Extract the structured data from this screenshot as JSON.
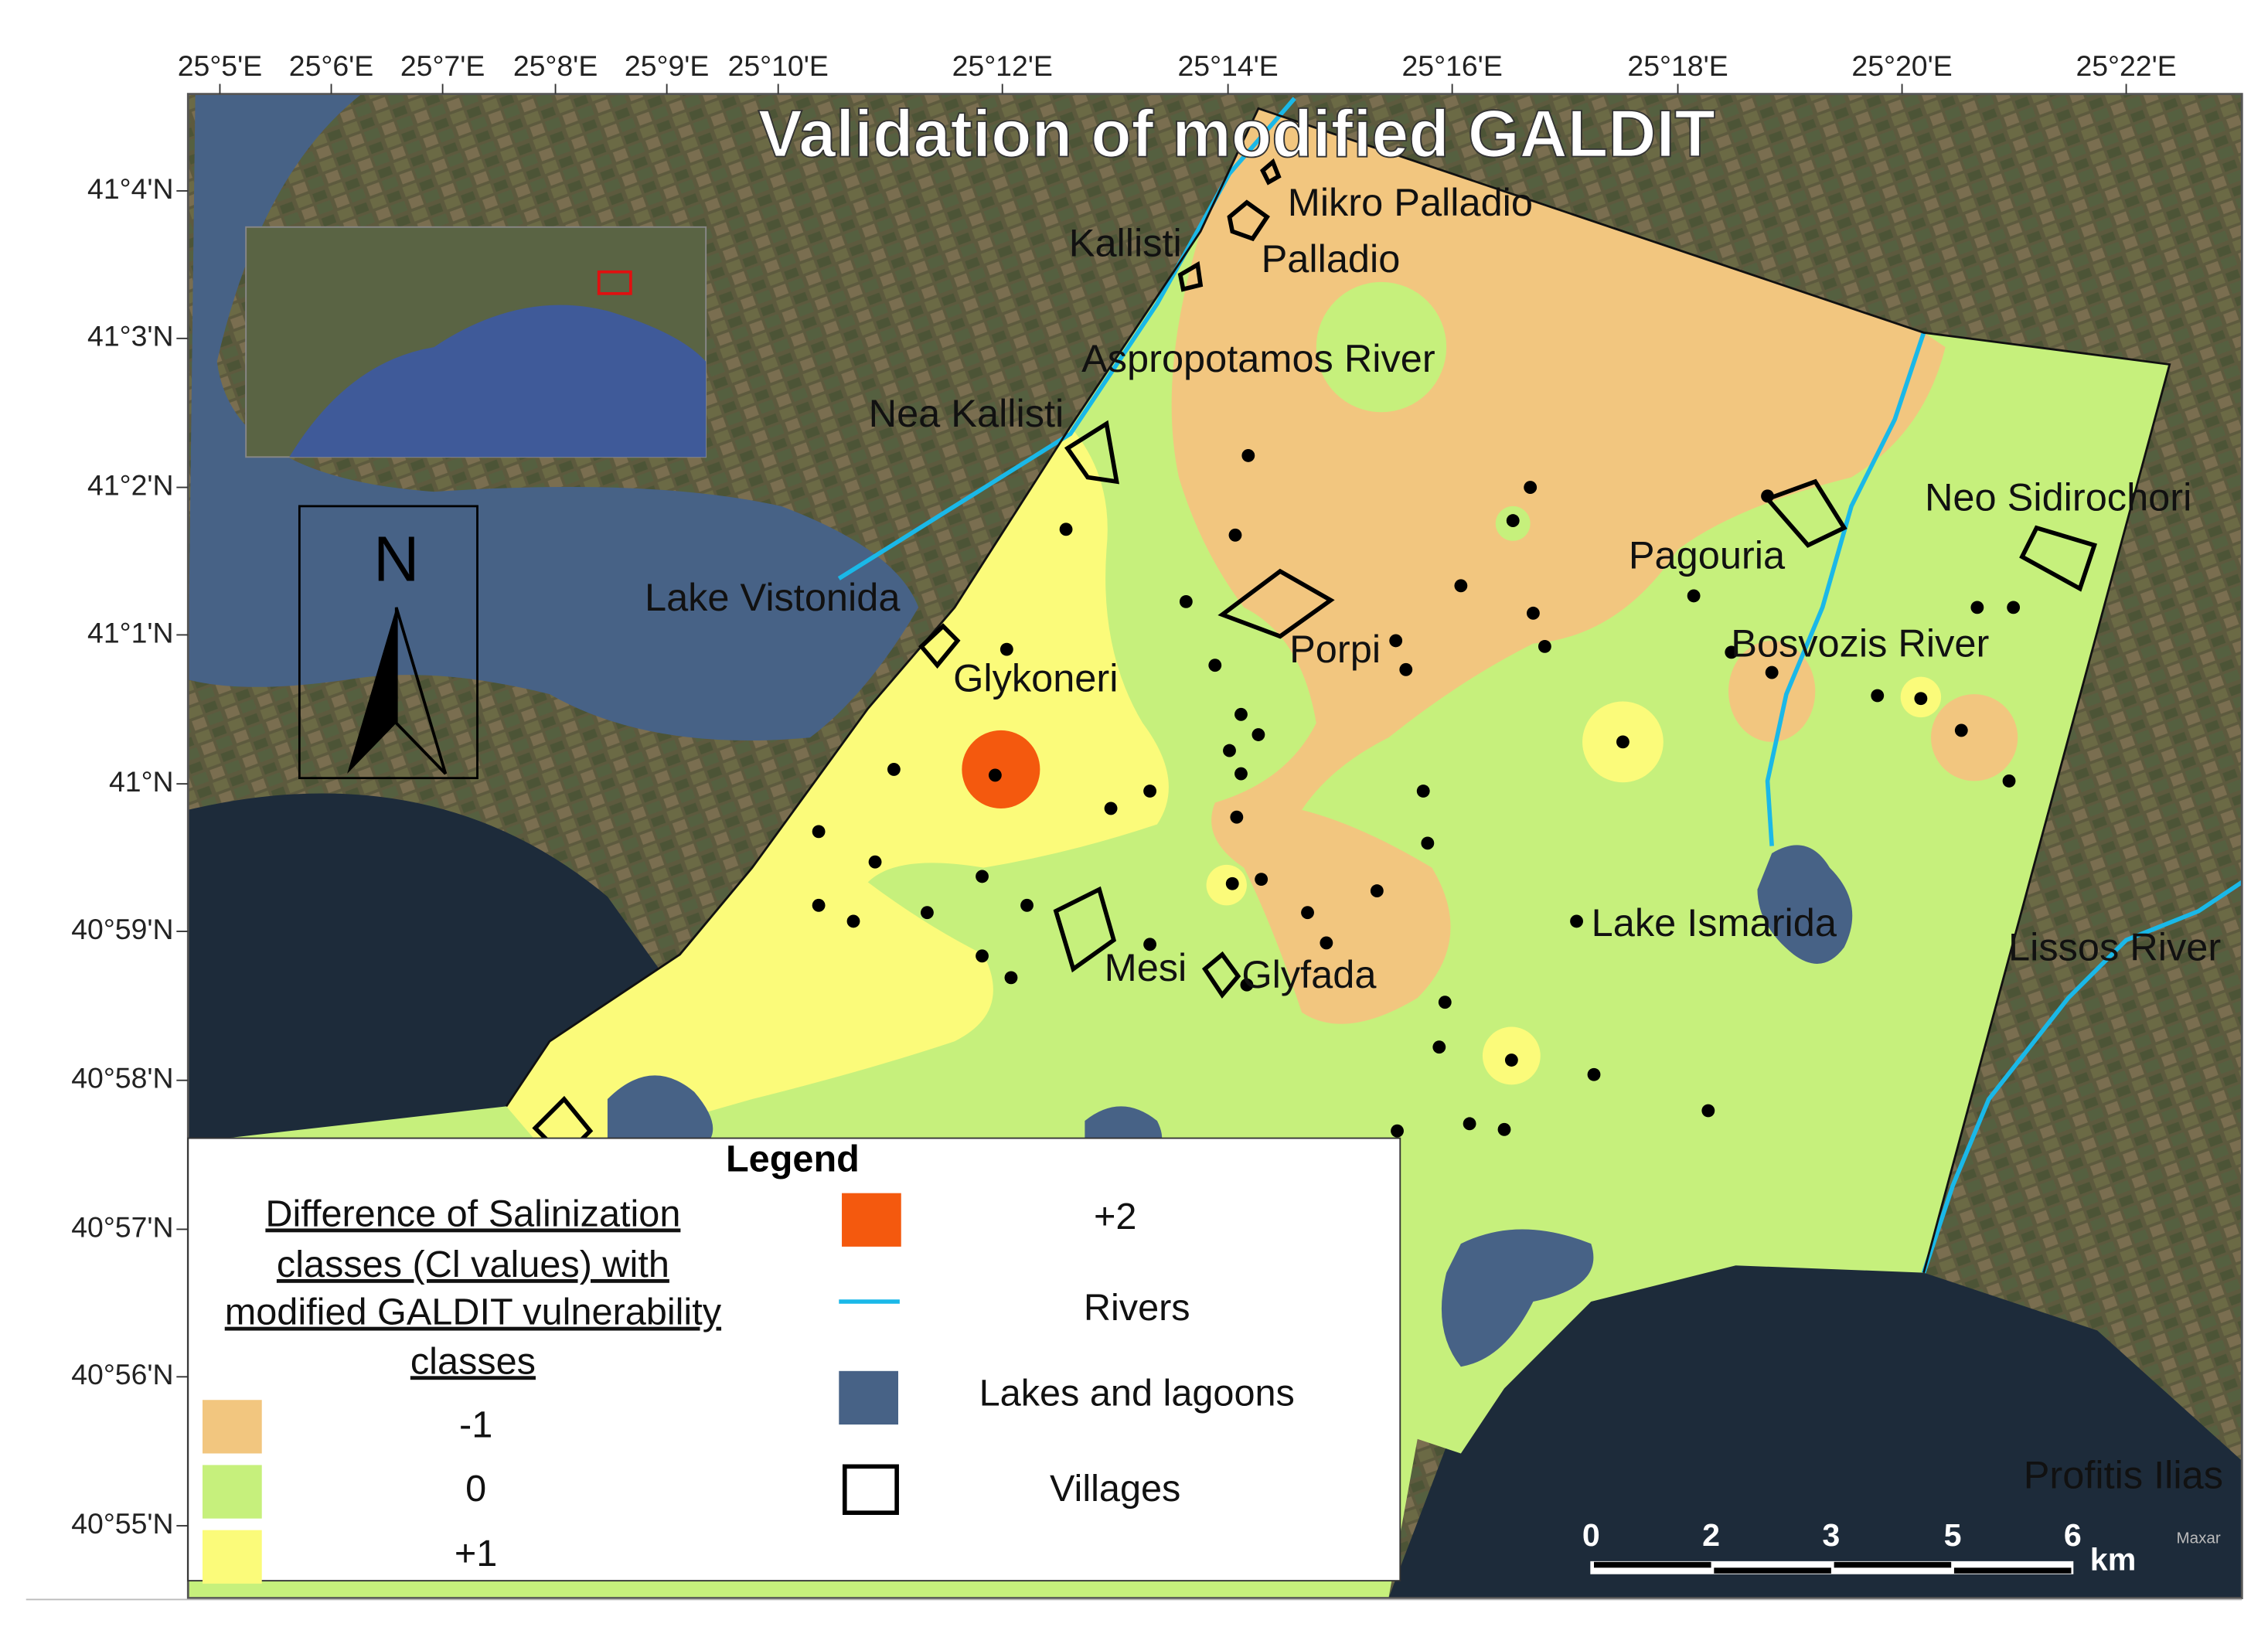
{
  "title": "Validation of modified GALDIT",
  "lon_ticks": [
    "25°5'E",
    "25°6'E",
    "25°7'E",
    "25°8'E",
    "25°9'E",
    "25°10'E",
    "25°12'E",
    "25°14'E",
    "25°16'E",
    "25°18'E",
    "25°20'E",
    "25°22'E"
  ],
  "lat_ticks": [
    "41°4'N",
    "41°3'N",
    "41°2'N",
    "41°1'N",
    "41°N",
    "40°59'N",
    "40°58'N",
    "40°57'N",
    "40°56'N",
    "40°55'N"
  ],
  "places": [
    "Mikro Palladio",
    "Palladio",
    "Kallisti",
    "Aspropotamos River",
    "Nea Kallisti",
    "Lake Vistonida",
    "Glykoneri",
    "Porpi",
    "Pagouria",
    "Neo Sidirochori",
    "Bosvozis River",
    "Lake Ismarida",
    "Lissos River",
    "Mesi",
    "Glyfada",
    "Profitis Ilias"
  ],
  "north": "N",
  "legend": {
    "title": "Legend",
    "heading": [
      "Difference of Salinization",
      "classes (Cl values) with",
      "modified GALDIT vulnerability",
      "classes"
    ],
    "classes": [
      {
        "label": "-1",
        "color": "#f2c67f"
      },
      {
        "label": "0",
        "color": "#c6f07c"
      },
      {
        "label": "+1",
        "color": "#fbfb7a"
      },
      {
        "label": "+2",
        "color": "#f4590e"
      }
    ],
    "features": [
      {
        "label": "Rivers",
        "color": "#1ab8e8"
      },
      {
        "label": "Lakes and lagoons",
        "color": "#476286"
      },
      {
        "label": "Villages",
        "color": "#000000"
      }
    ]
  },
  "scale_bar": {
    "labels": [
      "0",
      "2",
      "3",
      "5",
      "6"
    ],
    "unit": "km"
  },
  "credit": "Maxar"
}
